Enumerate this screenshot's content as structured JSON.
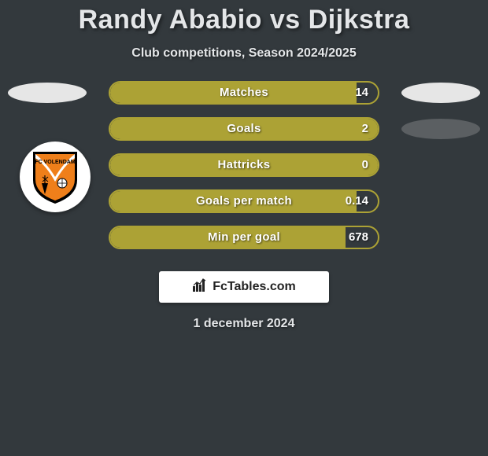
{
  "title": "Randy Ababio vs Dijkstra",
  "subtitle": "Club competitions, Season 2024/2025",
  "date": "1 december 2024",
  "attribution": "FcTables.com",
  "colors": {
    "background": "#33393d",
    "bar_fill": "#aca235",
    "bar_border": "#aca235",
    "oval_light": "#e6e6e6",
    "oval_dark": "#5b5f62",
    "text": "#e4e6e8",
    "club_shield_outer": "#000000",
    "club_shield_inner": "#ef7f1a",
    "club_shield_band": "#ffffff"
  },
  "club": {
    "name": "FC VOLENDAM"
  },
  "stats": [
    {
      "label": "Matches",
      "right_value": "14",
      "fill_pct": 92,
      "right_oval_dark": false
    },
    {
      "label": "Goals",
      "right_value": "2",
      "fill_pct": 100,
      "right_oval_dark": true
    },
    {
      "label": "Hattricks",
      "right_value": "0",
      "fill_pct": 100,
      "right_oval_dark": false
    },
    {
      "label": "Goals per match",
      "right_value": "0.14",
      "fill_pct": 92,
      "right_oval_dark": false
    },
    {
      "label": "Min per goal",
      "right_value": "678",
      "fill_pct": 88,
      "right_oval_dark": false
    }
  ]
}
